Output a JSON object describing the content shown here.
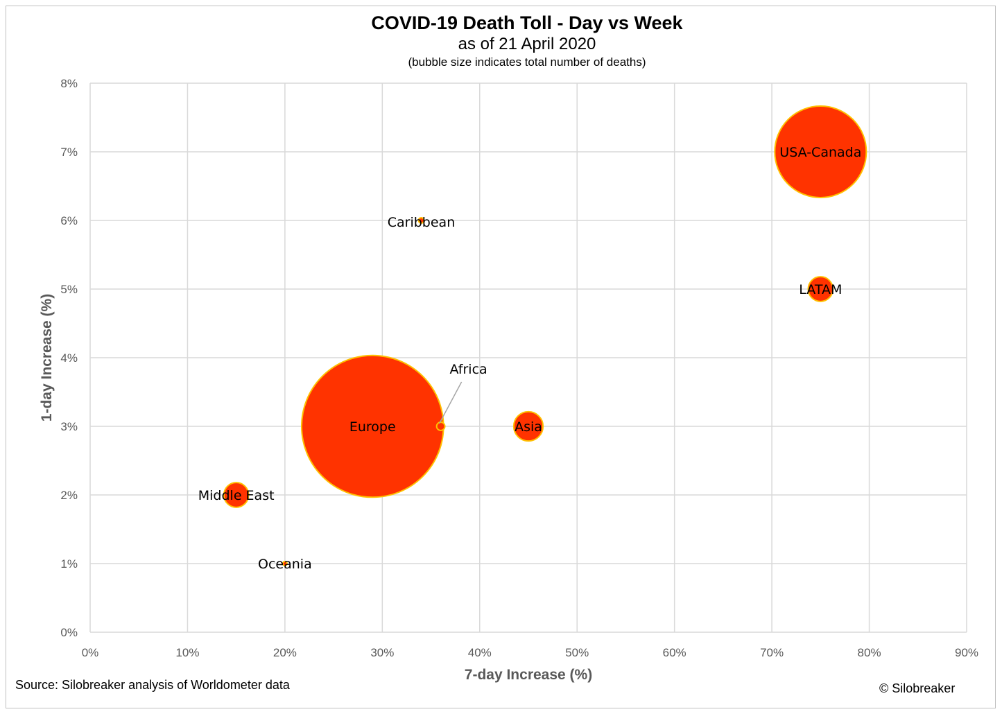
{
  "chart_data": {
    "type": "scatter",
    "title": "COVID-19 Death Toll - Day vs Week",
    "subtitle": "as of 21 April 2020",
    "note": "(bubble size indicates total number of deaths)",
    "xlabel": "7-day Increase (%)",
    "ylabel": "1-day Increase (%)",
    "xlim": [
      0,
      90
    ],
    "ylim": [
      0,
      8
    ],
    "xticks": [
      0,
      10,
      20,
      30,
      40,
      50,
      60,
      70,
      80,
      90
    ],
    "yticks": [
      0,
      1,
      2,
      3,
      4,
      5,
      6,
      7,
      8
    ],
    "x_tick_labels": [
      "0%",
      "10%",
      "20%",
      "30%",
      "40%",
      "50%",
      "60%",
      "70%",
      "80%",
      "90%"
    ],
    "y_tick_labels": [
      "0%",
      "1%",
      "2%",
      "3%",
      "4%",
      "5%",
      "6%",
      "7%",
      "8%"
    ],
    "grid": true,
    "bubble_color": "#ff3300",
    "bubble_border": "#ffc000",
    "points": [
      {
        "label": "USA-Canada",
        "x": 75,
        "y": 7,
        "size_rel": 1.0
      },
      {
        "label": "Caribbean",
        "x": 34,
        "y": 6,
        "size_rel": 0.06
      },
      {
        "label": "LATAM",
        "x": 75,
        "y": 5,
        "size_rel": 0.27
      },
      {
        "label": "Africa",
        "x": 36,
        "y": 3,
        "size_rel": 0.09
      },
      {
        "label": "Europe",
        "x": 29,
        "y": 3,
        "size_rel": 1.55
      },
      {
        "label": "Asia",
        "x": 45,
        "y": 3,
        "size_rel": 0.32
      },
      {
        "label": "Middle East",
        "x": 15,
        "y": 2,
        "size_rel": 0.27
      },
      {
        "label": "Oceania",
        "x": 20,
        "y": 1,
        "size_rel": 0.02
      }
    ]
  },
  "footer": {
    "source": "Source: Silobreaker analysis of Worldometer data",
    "copyright": "© Silobreaker"
  }
}
